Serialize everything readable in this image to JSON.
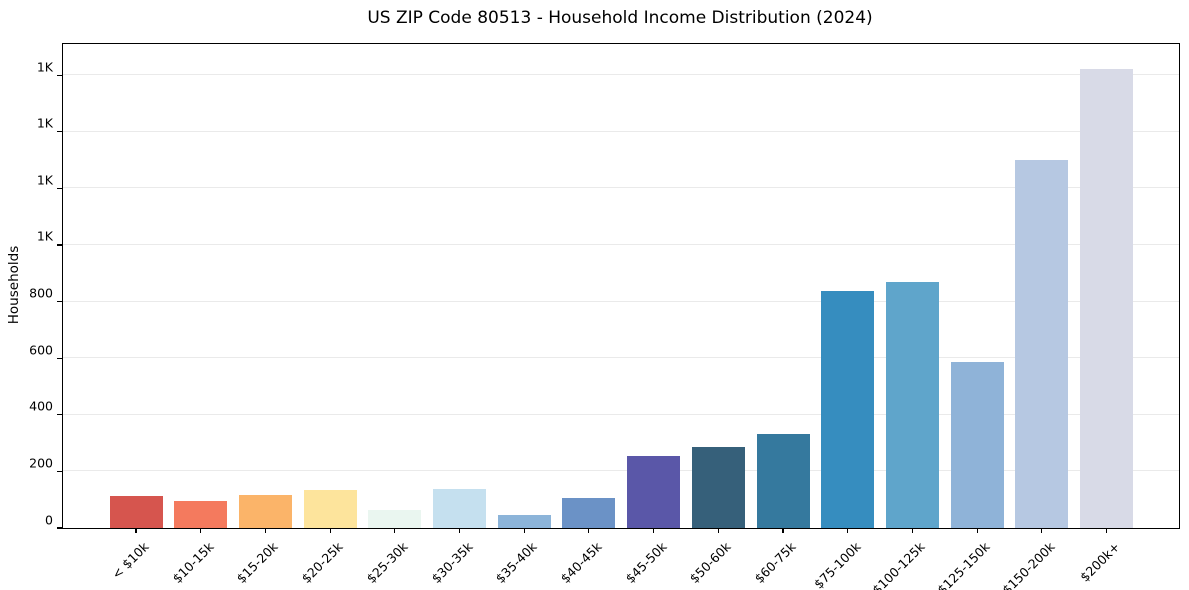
{
  "title": "US ZIP Code 80513 - Household Income Distribution (2024)",
  "chart_data": {
    "type": "bar",
    "title": "US ZIP Code 80513 - Household Income Distribution (2024)",
    "xlabel": "",
    "ylabel": "Households",
    "ylim": [
      0,
      1710
    ],
    "grid": "horizontal",
    "legend": "none",
    "x_tick_rotation": 45,
    "categories": [
      "< $10k",
      "$10-15k",
      "$15-20k",
      "$20-25k",
      "$25-30k",
      "$30-35k",
      "$35-40k",
      "$40-45k",
      "$45-50k",
      "$50-60k",
      "$60-75k",
      "$75-100k",
      "$100-125k",
      "$125-150k",
      "$150-200k",
      "$200k+"
    ],
    "values": [
      113,
      95,
      118,
      133,
      63,
      137,
      45,
      106,
      254,
      286,
      332,
      838,
      870,
      586,
      1300,
      1620
    ],
    "bar_colors": [
      "#d6554e",
      "#f47a5e",
      "#fbb469",
      "#fde49c",
      "#eaf6f0",
      "#c5e0ef",
      "#8cb4d9",
      "#6b92c6",
      "#5a57a8",
      "#36607a",
      "#35799e",
      "#368dbf",
      "#5fa5cb",
      "#8fb3d8",
      "#b6c8e2",
      "#d8dae7"
    ],
    "yticks": [
      {
        "value": 0,
        "label": "0"
      },
      {
        "value": 200,
        "label": "200"
      },
      {
        "value": 400,
        "label": "400"
      },
      {
        "value": 600,
        "label": "600"
      },
      {
        "value": 800,
        "label": "800"
      },
      {
        "value": 1000,
        "label": "1K"
      },
      {
        "value": 1200,
        "label": "1K"
      },
      {
        "value": 1400,
        "label": "1K"
      },
      {
        "value": 1600,
        "label": "1K"
      }
    ]
  },
  "colors": {
    "background": "#ffffff",
    "gridline": "#eaeaea",
    "axis": "#000000",
    "text": "#000000"
  }
}
